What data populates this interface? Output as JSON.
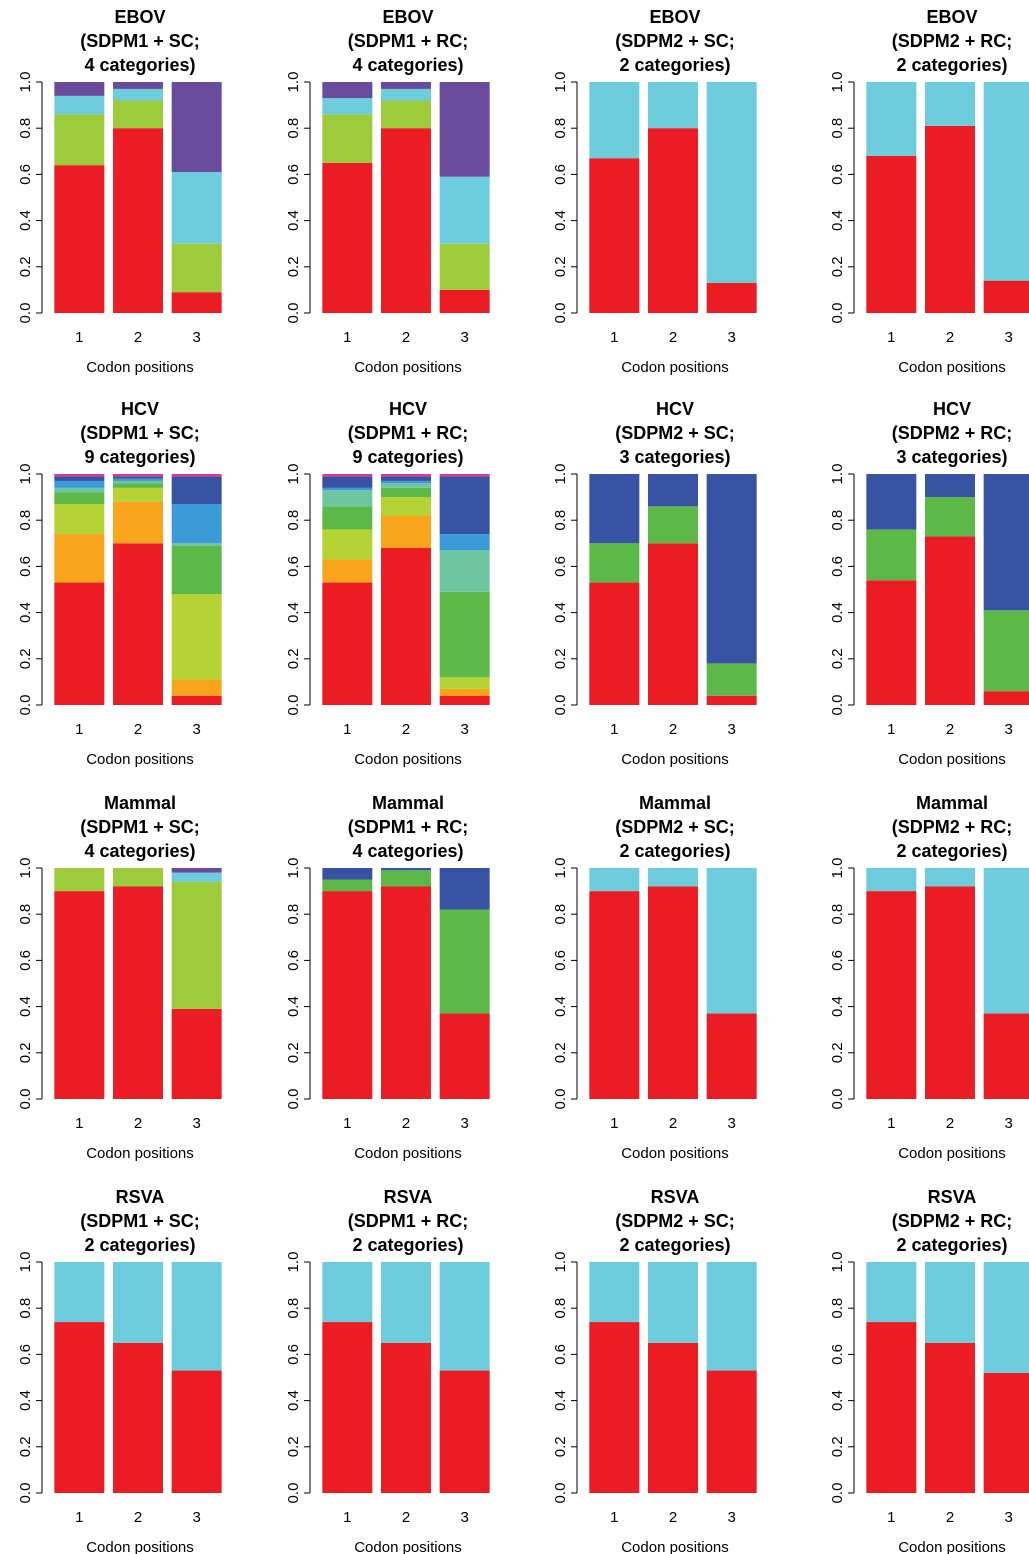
{
  "chart_data": [
    {
      "type": "bar",
      "title": [
        "EBOV",
        "(SDPM1 + SC;",
        "4 categories)"
      ],
      "categories": [
        "1",
        "2",
        "3"
      ],
      "xlabel": "Codon positions",
      "ylim": [
        0,
        1
      ],
      "yticks": [
        {
          "value": 0,
          "label": "0.0"
        },
        0.2,
        0.4,
        0.6,
        0.8,
        {
          "value": 1,
          "label": "1.0"
        }
      ],
      "series": [
        {
          "color": "#ec1c24",
          "values": [
            0.64,
            0.8,
            0.09
          ]
        },
        {
          "color": "#9ccb3b",
          "values": [
            0.22,
            0.12,
            0.21
          ]
        },
        {
          "color": "#6dcddd",
          "values": [
            0.08,
            0.05,
            0.31
          ]
        },
        {
          "color": "#6a4c9c",
          "values": [
            0.06,
            0.03,
            0.39
          ]
        }
      ]
    },
    {
      "type": "bar",
      "title": [
        "EBOV",
        "(SDPM1 + RC;",
        "4 categories)"
      ],
      "categories": [
        "1",
        "2",
        "3"
      ],
      "xlabel": "Codon positions",
      "ylim": [
        0,
        1
      ],
      "yticks": [
        {
          "value": 0,
          "label": "0.0"
        },
        0.2,
        0.4,
        0.6,
        0.8,
        {
          "value": 1,
          "label": "1.0"
        }
      ],
      "series": [
        {
          "color": "#ec1c24",
          "values": [
            0.65,
            0.8,
            0.1
          ]
        },
        {
          "color": "#9ccb3b",
          "values": [
            0.21,
            0.12,
            0.2
          ]
        },
        {
          "color": "#6dcddd",
          "values": [
            0.07,
            0.05,
            0.29
          ]
        },
        {
          "color": "#6a4c9c",
          "values": [
            0.07,
            0.03,
            0.41
          ]
        }
      ]
    },
    {
      "type": "bar",
      "title": [
        "EBOV",
        "(SDPM2 + SC;",
        "2 categories)"
      ],
      "categories": [
        "1",
        "2",
        "3"
      ],
      "xlabel": "Codon positions",
      "ylim": [
        0,
        1
      ],
      "yticks": [
        {
          "value": 0,
          "label": "0.0"
        },
        0.2,
        0.4,
        0.6,
        0.8,
        {
          "value": 1,
          "label": "1.0"
        }
      ],
      "series": [
        {
          "color": "#ec1c24",
          "values": [
            0.67,
            0.8,
            0.13
          ]
        },
        {
          "color": "#6dcddd",
          "values": [
            0.33,
            0.2,
            0.87
          ]
        }
      ]
    },
    {
      "type": "bar",
      "title": [
        "EBOV",
        "(SDPM2 + RC;",
        "2 categories)"
      ],
      "categories": [
        "1",
        "2",
        "3"
      ],
      "xlabel": "Codon positions",
      "ylim": [
        0,
        1
      ],
      "yticks": [
        {
          "value": 0,
          "label": "0.0"
        },
        0.2,
        0.4,
        0.6,
        0.8,
        {
          "value": 1,
          "label": "1.0"
        }
      ],
      "series": [
        {
          "color": "#ec1c24",
          "values": [
            0.68,
            0.81,
            0.14
          ]
        },
        {
          "color": "#6dcddd",
          "values": [
            0.32,
            0.19,
            0.86
          ]
        }
      ]
    },
    {
      "type": "bar",
      "title": [
        "HCV",
        "(SDPM1 + SC;",
        "9 categories)"
      ],
      "categories": [
        "1",
        "2",
        "3"
      ],
      "xlabel": "Codon positions",
      "ylim": [
        0,
        1
      ],
      "yticks": [
        {
          "value": 0,
          "label": "0.0"
        },
        0.2,
        0.4,
        0.6,
        0.8,
        {
          "value": 1,
          "label": "1.0"
        }
      ],
      "series": [
        {
          "color": "#ec1c24",
          "values": [
            0.53,
            0.7,
            0.04
          ]
        },
        {
          "color": "#f8a51b",
          "values": [
            0.21,
            0.18,
            0.07
          ]
        },
        {
          "color": "#b5d335",
          "values": [
            0.13,
            0.06,
            0.37
          ]
        },
        {
          "color": "#5db947",
          "values": [
            0.05,
            0.02,
            0.21
          ]
        },
        {
          "color": "#6dc6a0",
          "values": [
            0.02,
            0.01,
            0.01
          ]
        },
        {
          "color": "#3b9ad8",
          "values": [
            0.03,
            0.01,
            0.17
          ]
        },
        {
          "color": "#3953a4",
          "values": [
            0.02,
            0.01,
            0.12
          ]
        },
        {
          "color": "#e5338f",
          "values": [
            0.01,
            0.01,
            0.01
          ]
        }
      ]
    },
    {
      "type": "bar",
      "title": [
        "HCV",
        "(SDPM1 + RC;",
        "9 categories)"
      ],
      "categories": [
        "1",
        "2",
        "3"
      ],
      "xlabel": "Codon positions",
      "ylim": [
        0,
        1
      ],
      "yticks": [
        {
          "value": 0,
          "label": "0.0"
        },
        0.2,
        0.4,
        0.6,
        0.8,
        {
          "value": 1,
          "label": "1.0"
        }
      ],
      "series": [
        {
          "color": "#ec1c24",
          "values": [
            0.53,
            0.68,
            0.04
          ]
        },
        {
          "color": "#f8a51b",
          "values": [
            0.1,
            0.14,
            0.03
          ]
        },
        {
          "color": "#b5d335",
          "values": [
            0.13,
            0.08,
            0.05
          ]
        },
        {
          "color": "#5db947",
          "values": [
            0.1,
            0.04,
            0.37
          ]
        },
        {
          "color": "#6dc6a0",
          "values": [
            0.07,
            0.02,
            0.18
          ]
        },
        {
          "color": "#3b9ad8",
          "values": [
            0.01,
            0.01,
            0.07
          ]
        },
        {
          "color": "#3953a4",
          "values": [
            0.05,
            0.02,
            0.25
          ]
        },
        {
          "color": "#e5338f",
          "values": [
            0.01,
            0.01,
            0.01
          ]
        }
      ]
    },
    {
      "type": "bar",
      "title": [
        "HCV",
        "(SDPM2 + SC;",
        "3 categories)"
      ],
      "categories": [
        "1",
        "2",
        "3"
      ],
      "xlabel": "Codon positions",
      "ylim": [
        0,
        1
      ],
      "yticks": [
        {
          "value": 0,
          "label": "0.0"
        },
        0.2,
        0.4,
        0.6,
        0.8,
        {
          "value": 1,
          "label": "1.0"
        }
      ],
      "series": [
        {
          "color": "#ec1c24",
          "values": [
            0.53,
            0.7,
            0.04
          ]
        },
        {
          "color": "#5db947",
          "values": [
            0.17,
            0.16,
            0.14
          ]
        },
        {
          "color": "#3953a4",
          "values": [
            0.3,
            0.14,
            0.82
          ]
        }
      ]
    },
    {
      "type": "bar",
      "title": [
        "HCV",
        "(SDPM2 + RC;",
        "3 categories)"
      ],
      "categories": [
        "1",
        "2",
        "3"
      ],
      "xlabel": "Codon positions",
      "ylim": [
        0,
        1
      ],
      "yticks": [
        {
          "value": 0,
          "label": "0.0"
        },
        0.2,
        0.4,
        0.6,
        0.8,
        {
          "value": 1,
          "label": "1.0"
        }
      ],
      "series": [
        {
          "color": "#ec1c24",
          "values": [
            0.54,
            0.73,
            0.06
          ]
        },
        {
          "color": "#5db947",
          "values": [
            0.22,
            0.17,
            0.35
          ]
        },
        {
          "color": "#3953a4",
          "values": [
            0.24,
            0.1,
            0.59
          ]
        }
      ]
    },
    {
      "type": "bar",
      "title": [
        "Mammal",
        "(SDPM1 + SC;",
        "4 categories)"
      ],
      "categories": [
        "1",
        "2",
        "3"
      ],
      "xlabel": "Codon positions",
      "ylim": [
        0,
        1
      ],
      "yticks": [
        {
          "value": 0,
          "label": "0.0"
        },
        0.2,
        0.4,
        0.6,
        0.8,
        {
          "value": 1,
          "label": "1.0"
        }
      ],
      "series": [
        {
          "color": "#ec1c24",
          "values": [
            0.9,
            0.92,
            0.39
          ]
        },
        {
          "color": "#9ccb3b",
          "values": [
            0.1,
            0.08,
            0.55
          ]
        },
        {
          "color": "#6dcddd",
          "values": [
            0,
            0,
            0.04
          ]
        },
        {
          "color": "#6a4c9c",
          "values": [
            0,
            0,
            0.02
          ]
        }
      ]
    },
    {
      "type": "bar",
      "title": [
        "Mammal",
        "(SDPM1 + RC;",
        "4 categories)"
      ],
      "categories": [
        "1",
        "2",
        "3"
      ],
      "xlabel": "Codon positions",
      "ylim": [
        0,
        1
      ],
      "yticks": [
        {
          "value": 0,
          "label": "0.0"
        },
        0.2,
        0.4,
        0.6,
        0.8,
        {
          "value": 1,
          "label": "1.0"
        }
      ],
      "series": [
        {
          "color": "#ec1c24",
          "values": [
            0.9,
            0.92,
            0.37
          ]
        },
        {
          "color": "#5db947",
          "values": [
            0.05,
            0.07,
            0.45
          ]
        },
        {
          "color": "#3953a4",
          "values": [
            0.05,
            0.01,
            0.18
          ]
        }
      ]
    },
    {
      "type": "bar",
      "title": [
        "Mammal",
        "(SDPM2 + SC;",
        "2 categories)"
      ],
      "categories": [
        "1",
        "2",
        "3"
      ],
      "xlabel": "Codon positions",
      "ylim": [
        0,
        1
      ],
      "yticks": [
        {
          "value": 0,
          "label": "0.0"
        },
        0.2,
        0.4,
        0.6,
        0.8,
        {
          "value": 1,
          "label": "1.0"
        }
      ],
      "series": [
        {
          "color": "#ec1c24",
          "values": [
            0.9,
            0.92,
            0.37
          ]
        },
        {
          "color": "#6dcddd",
          "values": [
            0.1,
            0.08,
            0.63
          ]
        }
      ]
    },
    {
      "type": "bar",
      "title": [
        "Mammal",
        "(SDPM2 + RC;",
        "2 categories)"
      ],
      "categories": [
        "1",
        "2",
        "3"
      ],
      "xlabel": "Codon positions",
      "ylim": [
        0,
        1
      ],
      "yticks": [
        {
          "value": 0,
          "label": "0.0"
        },
        0.2,
        0.4,
        0.6,
        0.8,
        {
          "value": 1,
          "label": "1.0"
        }
      ],
      "series": [
        {
          "color": "#ec1c24",
          "values": [
            0.9,
            0.92,
            0.37
          ]
        },
        {
          "color": "#6dcddd",
          "values": [
            0.1,
            0.08,
            0.63
          ]
        }
      ]
    },
    {
      "type": "bar",
      "title": [
        "RSVA",
        "(SDPM1 + SC;",
        "2 categories)"
      ],
      "categories": [
        "1",
        "2",
        "3"
      ],
      "xlabel": "Codon positions",
      "ylim": [
        0,
        1
      ],
      "yticks": [
        {
          "value": 0,
          "label": "0.0"
        },
        0.2,
        0.4,
        0.6,
        0.8,
        {
          "value": 1,
          "label": "1.0"
        }
      ],
      "series": [
        {
          "color": "#ec1c24",
          "values": [
            0.74,
            0.65,
            0.53
          ]
        },
        {
          "color": "#6dcddd",
          "values": [
            0.26,
            0.35,
            0.47
          ]
        }
      ]
    },
    {
      "type": "bar",
      "title": [
        "RSVA",
        "(SDPM1 + RC;",
        "2 categories)"
      ],
      "categories": [
        "1",
        "2",
        "3"
      ],
      "xlabel": "Codon positions",
      "ylim": [
        0,
        1
      ],
      "yticks": [
        {
          "value": 0,
          "label": "0.0"
        },
        0.2,
        0.4,
        0.6,
        0.8,
        {
          "value": 1,
          "label": "1.0"
        }
      ],
      "series": [
        {
          "color": "#ec1c24",
          "values": [
            0.74,
            0.65,
            0.53
          ]
        },
        {
          "color": "#6dcddd",
          "values": [
            0.26,
            0.35,
            0.47
          ]
        }
      ]
    },
    {
      "type": "bar",
      "title": [
        "RSVA",
        "(SDPM2 + SC;",
        "2 categories)"
      ],
      "categories": [
        "1",
        "2",
        "3"
      ],
      "xlabel": "Codon positions",
      "ylim": [
        0,
        1
      ],
      "yticks": [
        {
          "value": 0,
          "label": "0.0"
        },
        0.2,
        0.4,
        0.6,
        0.8,
        {
          "value": 1,
          "label": "1.0"
        }
      ],
      "series": [
        {
          "color": "#ec1c24",
          "values": [
            0.74,
            0.65,
            0.53
          ]
        },
        {
          "color": "#6dcddd",
          "values": [
            0.26,
            0.35,
            0.47
          ]
        }
      ]
    },
    {
      "type": "bar",
      "title": [
        "RSVA",
        "(SDPM2 + RC;",
        "2 categories)"
      ],
      "categories": [
        "1",
        "2",
        "3"
      ],
      "xlabel": "Codon positions",
      "ylim": [
        0,
        1
      ],
      "yticks": [
        {
          "value": 0,
          "label": "0.0"
        },
        0.2,
        0.4,
        0.6,
        0.8,
        {
          "value": 1,
          "label": "1.0"
        }
      ],
      "series": [
        {
          "color": "#ec1c24",
          "values": [
            0.74,
            0.65,
            0.52
          ]
        },
        {
          "color": "#6dcddd",
          "values": [
            0.26,
            0.35,
            0.48
          ]
        }
      ]
    }
  ]
}
